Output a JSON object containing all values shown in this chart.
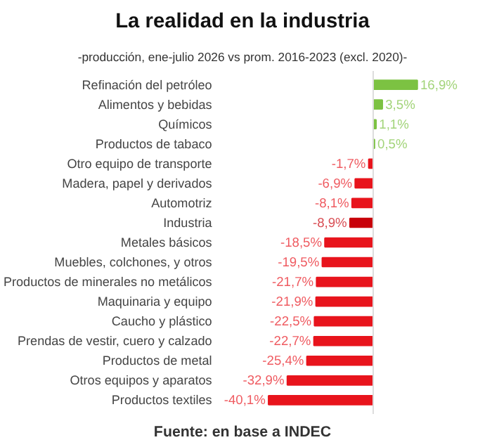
{
  "chart_data": {
    "type": "bar",
    "orientation": "horizontal",
    "title": "La realidad en la industria",
    "subtitle": "-producción, ene-julio 2026 vs prom. 2016-2023 (excl. 2020)-",
    "categories": [
      "Refinación del petróleo",
      "Alimentos y bebidas",
      "Químicos",
      "Productos de tabaco",
      "Otro equipo de transporte",
      "Madera, papel y derivados",
      "Automotriz",
      "Industria",
      "Metales básicos",
      "Muebles, colchones, y otros",
      "Productos de minerales no metálicos",
      "Maquinaria y equipo",
      "Caucho y plástico",
      "Prendas de vestir, cuero y calzado",
      "Productos de metal",
      "Otros equipos y aparatos",
      "Productos textiles"
    ],
    "values": [
      16.9,
      3.5,
      1.1,
      0.5,
      -1.7,
      -6.9,
      -8.1,
      -8.9,
      -18.5,
      -19.5,
      -21.7,
      -21.9,
      -22.5,
      -22.7,
      -25.4,
      -32.9,
      -40.1
    ],
    "value_labels": [
      "16,9%",
      "3,5%",
      "1,1%",
      "0,5%",
      "-1,7%",
      "-6,9%",
      "-8,1%",
      "-8,9%",
      "-18,5%",
      "-19,5%",
      "-21,7%",
      "-21,9%",
      "-22,5%",
      "-22,7%",
      "-25,4%",
      "-32,9%",
      "-40,1%"
    ],
    "colors": [
      "#7cc242",
      "#7cc242",
      "#7cc242",
      "#7cc242",
      "#e8141c",
      "#e8141c",
      "#e8141c",
      "#c8000a",
      "#e8141c",
      "#e8141c",
      "#e8141c",
      "#e8141c",
      "#e8141c",
      "#e8141c",
      "#e8141c",
      "#e8141c",
      "#e8141c"
    ],
    "annotations": [
      "Fuente: en base a INDEC"
    ]
  }
}
